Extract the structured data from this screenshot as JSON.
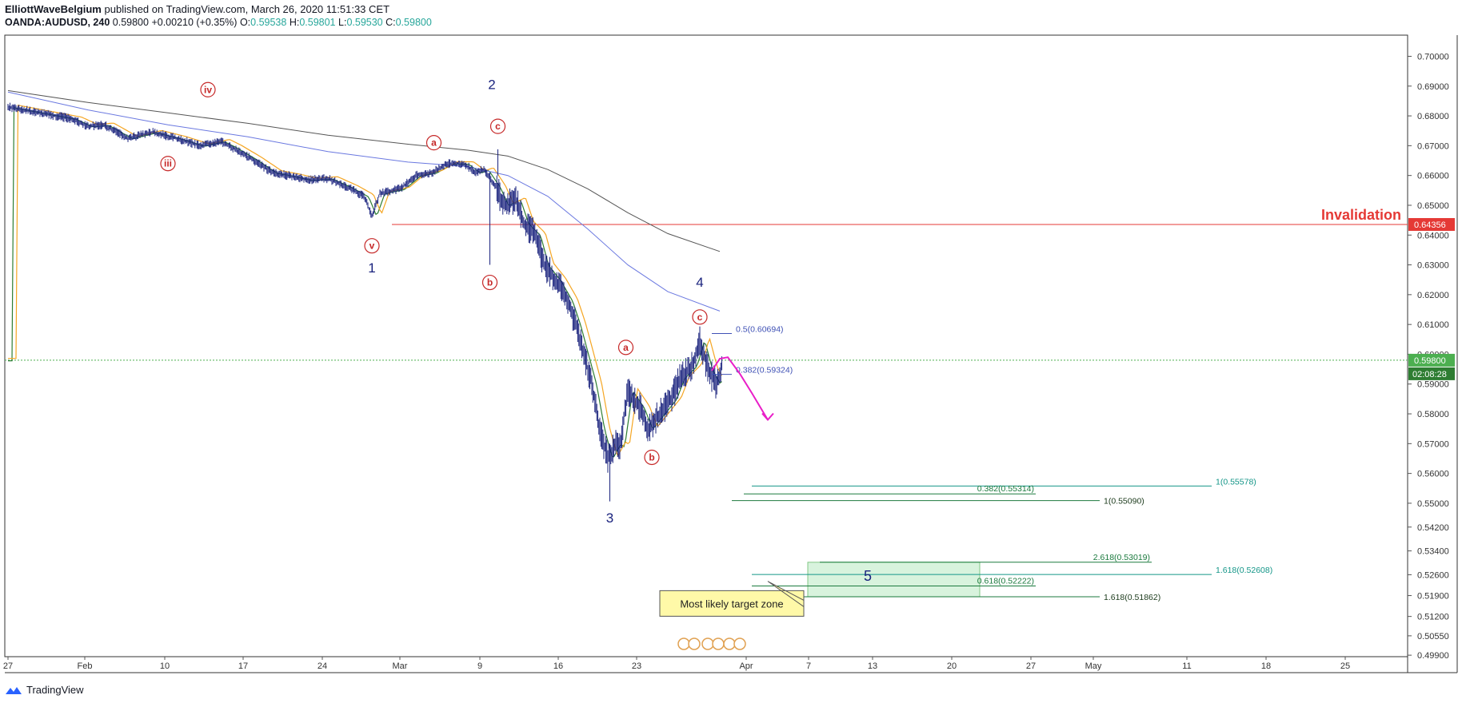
{
  "header": {
    "author": "ElliottWaveBelgium",
    "published_text": "published on TradingView.com, March 26, 2020 11:51:33 CET",
    "symbol": "OANDA:AUDUSD, 240",
    "last": "0.59800",
    "change": "+0.00210 (+0.35%)",
    "o_label": "O:",
    "o_val": "0.59538",
    "h_label": "H:",
    "h_val": "0.59801",
    "l_label": "L:",
    "l_val": "0.59530",
    "c_label": "C:",
    "c_val": "0.59800"
  },
  "footer": {
    "brand": "TradingView",
    "logo_icon": "tradingview-logo-icon"
  },
  "colors": {
    "up": "#26a69a",
    "wave_red": "#c62828",
    "wave_blue": "#1a237e",
    "fib_blue": "#3f51b5",
    "fib_green": "#1b7a3e",
    "fib_teal": "#149688",
    "invalidation": "#e53935",
    "ema_green": "#2e7d32",
    "ema_orange": "#f5a623",
    "ma_blue": "#6a78e0",
    "ma_black": "#555555",
    "projection": "#e91ec8",
    "target_zone": "#d8f3dd",
    "last_price_bg": "#4caf50"
  },
  "chart_data": {
    "type": "candlestick",
    "symbol": "OANDA:AUDUSD",
    "timeframe": "240",
    "y_ticks": [
      "0.70000",
      "0.69000",
      "0.68000",
      "0.67000",
      "0.66000",
      "0.65000",
      "0.64000",
      "0.63000",
      "0.62000",
      "0.61000",
      "0.60000",
      "0.59000",
      "0.58000",
      "0.57000",
      "0.56000",
      "0.55000",
      "0.54200",
      "0.53400",
      "0.52600",
      "0.51900",
      "0.51200",
      "0.50550",
      "0.49900"
    ],
    "ylim": [
      0.4985,
      0.7071
    ],
    "x_ticks": [
      "27",
      "Feb",
      "10",
      "17",
      "24",
      "Mar",
      "9",
      "16",
      "23",
      "Apr",
      "7",
      "13",
      "20",
      "27",
      "May",
      "11",
      "18",
      "25"
    ],
    "last_price_label": "0.59800",
    "countdown_label": "02:08:28",
    "invalidation": {
      "text": "Invalidation",
      "value": "0.64356"
    },
    "price_path": [
      [
        -10,
        0.683
      ],
      [
        2,
        0.68
      ],
      [
        6,
        0.679
      ],
      [
        10,
        0.6765
      ],
      [
        14,
        0.677
      ],
      [
        20,
        0.6725
      ],
      [
        26,
        0.6745
      ],
      [
        32,
        0.6725
      ],
      [
        38,
        0.67
      ],
      [
        43,
        0.6715
      ],
      [
        46,
        0.6695
      ],
      [
        51,
        0.6655
      ],
      [
        56,
        0.661
      ],
      [
        60,
        0.66
      ],
      [
        65,
        0.6585
      ],
      [
        70,
        0.659
      ],
      [
        75,
        0.656
      ],
      [
        79,
        0.653
      ],
      [
        81,
        0.6465
      ],
      [
        83,
        0.654
      ],
      [
        88,
        0.6555
      ],
      [
        92,
        0.66
      ],
      [
        96,
        0.661
      ],
      [
        100,
        0.664
      ],
      [
        104,
        0.664
      ],
      [
        106,
        0.662
      ],
      [
        107,
        0.661
      ],
      [
        109,
        0.662
      ],
      [
        112,
        0.656
      ],
      [
        114,
        0.65
      ],
      [
        117,
        0.652
      ],
      [
        119,
        0.644
      ],
      [
        122,
        0.64
      ],
      [
        124,
        0.63
      ],
      [
        127,
        0.625
      ],
      [
        130,
        0.618
      ],
      [
        132,
        0.61
      ],
      [
        134,
        0.6
      ],
      [
        136,
        0.59
      ],
      [
        138,
        0.575
      ],
      [
        140,
        0.565
      ],
      [
        142,
        0.57
      ],
      [
        143,
        0.569
      ],
      [
        145,
        0.588
      ],
      [
        148,
        0.582
      ],
      [
        150,
        0.575
      ],
      [
        153,
        0.58
      ],
      [
        156,
        0.585
      ],
      [
        158,
        0.592
      ],
      [
        161,
        0.596
      ],
      [
        162,
        0.6
      ],
      [
        163,
        0.605
      ],
      [
        165,
        0.595
      ],
      [
        167,
        0.59
      ],
      [
        168,
        0.5935
      ],
      [
        168.5,
        0.598
      ]
    ],
    "moving_averages": [
      {
        "name": "EMA short",
        "color": "#2e7d32",
        "lag": 1.2
      },
      {
        "name": "EMA medium",
        "color": "#f5a623",
        "lag": 2.4
      },
      {
        "name": "MA blue",
        "points": [
          [
            -10,
            0.688
          ],
          [
            10,
            0.682
          ],
          [
            30,
            0.677
          ],
          [
            50,
            0.673
          ],
          [
            70,
            0.668
          ],
          [
            90,
            0.6645
          ],
          [
            105,
            0.663
          ],
          [
            115,
            0.66
          ],
          [
            125,
            0.653
          ],
          [
            135,
            0.642
          ],
          [
            145,
            0.63
          ],
          [
            155,
            0.621
          ],
          [
            168,
            0.6145
          ]
        ]
      },
      {
        "name": "MA black",
        "points": [
          [
            -10,
            0.6885
          ],
          [
            10,
            0.6845
          ],
          [
            30,
            0.681
          ],
          [
            50,
            0.6775
          ],
          [
            70,
            0.6735
          ],
          [
            90,
            0.6705
          ],
          [
            105,
            0.6685
          ],
          [
            115,
            0.6665
          ],
          [
            125,
            0.662
          ],
          [
            135,
            0.6555
          ],
          [
            145,
            0.6475
          ],
          [
            155,
            0.6405
          ],
          [
            168,
            0.6345
          ]
        ]
      }
    ],
    "wave_labels": [
      {
        "text": "iv",
        "type": "circle",
        "x": 40,
        "y": 0.6888
      },
      {
        "text": "iii",
        "type": "circle",
        "x": 30,
        "y": 0.664
      },
      {
        "text": "a",
        "type": "circle",
        "x": 96.5,
        "y": 0.671
      },
      {
        "text": "c",
        "type": "circle",
        "x": 112.5,
        "y": 0.6765
      },
      {
        "text": "v",
        "type": "circle",
        "x": 81,
        "y": 0.6364
      },
      {
        "text": "b",
        "type": "circle",
        "x": 110.5,
        "y": 0.6241
      },
      {
        "text": "a",
        "type": "circle",
        "x": 144.5,
        "y": 0.6023
      },
      {
        "text": "c",
        "type": "circle",
        "x": 163,
        "y": 0.6125
      },
      {
        "text": "b",
        "type": "circle",
        "x": 151,
        "y": 0.5654
      },
      {
        "text": "2",
        "type": "plain",
        "x": 111,
        "y": 0.689
      },
      {
        "text": "1",
        "type": "plain",
        "x": 81,
        "y": 0.6275
      },
      {
        "text": "4",
        "type": "plain",
        "x": 163,
        "y": 0.6226
      },
      {
        "text": "3",
        "type": "plain",
        "x": 140.5,
        "y": 0.5435
      },
      {
        "text": "5",
        "type": "plain-big",
        "x": 205,
        "y": 0.524
      }
    ],
    "fib_levels": [
      {
        "label": "0.5(0.60694)",
        "value": 0.60694,
        "x0": 166,
        "x1": 171,
        "label_x": 172,
        "color": "#3f51b5"
      },
      {
        "label": "0.382(0.59324)",
        "value": 0.59324,
        "x0": 166,
        "x1": 171,
        "label_x": 172,
        "color": "#3f51b5"
      },
      {
        "label": "1(0.55578)",
        "value": 0.55578,
        "x0": 176,
        "x1": 291,
        "label_x": 292,
        "color": "#149688"
      },
      {
        "label": "0.382(0.55314)",
        "value": 0.55314,
        "x0": 174,
        "x1": 247,
        "label_x": 248,
        "color": "#1b7a3e",
        "label_anchor": "end"
      },
      {
        "label": "1(0.55090)",
        "value": 0.5509,
        "x0": 171,
        "x1": 263,
        "label_x": 264,
        "color": "#1b7a3e",
        "dark": true
      },
      {
        "label": "2.618(0.53019)",
        "value": 0.53019,
        "x0": 193,
        "x1": 276,
        "label_x": 277,
        "color": "#1b7a3e",
        "label_anchor": "end"
      },
      {
        "label": "1.618(0.52608)",
        "value": 0.52608,
        "x0": 176,
        "x1": 291,
        "label_x": 292,
        "color": "#149688"
      },
      {
        "label": "0.618(0.52222)",
        "value": 0.52222,
        "x0": 176,
        "x1": 247,
        "label_x": 248,
        "color": "#1b7a3e",
        "label_anchor": "end"
      },
      {
        "label": "1.618(0.51862)",
        "value": 0.51862,
        "x0": 176,
        "x1": 263,
        "label_x": 264,
        "color": "#1b7a3e",
        "dark": true
      }
    ],
    "target_zone": {
      "x0": 190,
      "x1": 233,
      "y0": 0.53019,
      "y1": 0.51862
    },
    "callout": {
      "text": "Most likely target zone",
      "x": 154,
      "y": 0.5185
    },
    "projection": {
      "points": [
        [
          166,
          0.5945
        ],
        [
          168,
          0.5985
        ],
        [
          170,
          0.599
        ],
        [
          173,
          0.5935
        ],
        [
          176,
          0.587
        ],
        [
          180,
          0.578
        ]
      ]
    }
  }
}
